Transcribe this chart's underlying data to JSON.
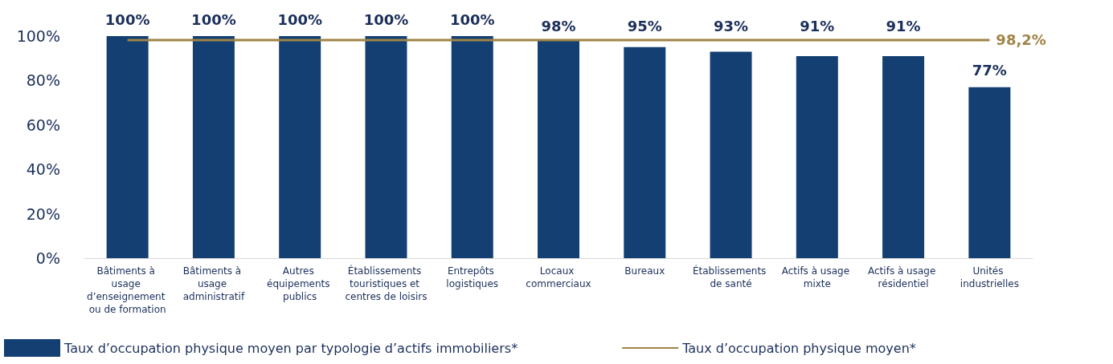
{
  "chart_data": {
    "type": "bar",
    "categories": [
      "Bâtiments à usage d’enseignement ou de formation",
      "Bâtiments à usage administratif",
      "Autres équipements publics",
      "Établissements touristiques et centres de loisirs",
      "Entrepôts logistiques",
      "Locaux commerciaux",
      "Bureaux",
      "Établissements de santé",
      "Actifs à usage mixte",
      "Actifs à usage résidentiel",
      "Unités industrielles"
    ],
    "series": [
      {
        "name": "Taux d’occupation physique moyen par typologie d’actifs immobiliers*",
        "color": "#133f72",
        "values": [
          100,
          100,
          100,
          100,
          100,
          98,
          95,
          93,
          91,
          91,
          77
        ],
        "value_labels": [
          "100%",
          "100%",
          "100%",
          "100%",
          "100%",
          "98%",
          "95%",
          "93%",
          "91%",
          "91%",
          "77%"
        ]
      },
      {
        "name": "Taux d’occupation physique moyen*",
        "type": "line",
        "color": "#a08448",
        "values": [
          98.2,
          98.2,
          98.2,
          98.2,
          98.2,
          98.2,
          98.2,
          98.2,
          98.2,
          98.2,
          98.2
        ],
        "value_labels": [
          null,
          null,
          null,
          null,
          null,
          null,
          null,
          null,
          null,
          null,
          "98,2%"
        ]
      }
    ],
    "ylim": [
      0,
      100
    ],
    "yticks": [
      {
        "value": 0,
        "label": "0%"
      },
      {
        "value": 20,
        "label": "20%"
      },
      {
        "value": 40,
        "label": "40%"
      },
      {
        "value": 60,
        "label": "60%"
      },
      {
        "value": 80,
        "label": "80%"
      },
      {
        "value": 100,
        "label": "100%"
      }
    ],
    "grid": false,
    "legend": "bottom",
    "marker": "none",
    "line_style": "solid"
  }
}
